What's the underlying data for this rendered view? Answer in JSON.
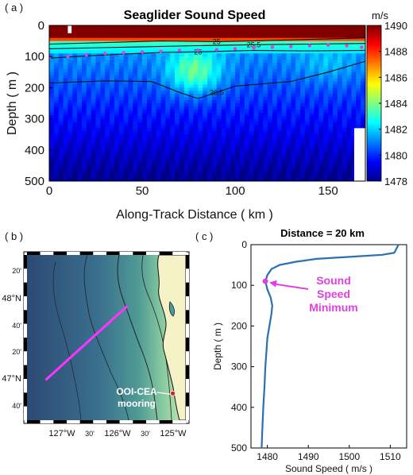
{
  "chart_data": [
    {
      "type": "heatmap",
      "panel_label": "( a )",
      "title": "Seaglider Sound Speed",
      "xlabel": "Along-Track Distance ( km )",
      "ylabel": "Depth ( m )",
      "xlim": [
        0,
        170
      ],
      "ylim": [
        500,
        0
      ],
      "xticks": [
        0,
        50,
        100,
        150
      ],
      "yticks": [
        0,
        100,
        200,
        300,
        400,
        500
      ],
      "colorbar": {
        "label": "m/s",
        "range": [
          1478,
          1490
        ],
        "ticks": [
          1478,
          1480,
          1482,
          1484,
          1486,
          1488,
          1490
        ]
      },
      "contours": [
        {
          "label": "25",
          "points": [
            [
              0,
              60
            ],
            [
              30,
              55
            ],
            [
              60,
              50
            ],
            [
              90,
              52
            ],
            [
              110,
              50
            ],
            [
              140,
              45
            ],
            [
              170,
              40
            ]
          ]
        },
        {
          "label": "25.5",
          "points": [
            [
              0,
              75
            ],
            [
              40,
              70
            ],
            [
              80,
              65
            ],
            [
              110,
              62
            ],
            [
              140,
              60
            ],
            [
              170,
              58
            ]
          ]
        },
        {
          "label": "26",
          "points": [
            [
              0,
              105
            ],
            [
              20,
              98
            ],
            [
              40,
              92
            ],
            [
              60,
              87
            ],
            [
              80,
              85
            ],
            [
              110,
              80
            ],
            [
              140,
              82
            ],
            [
              170,
              80
            ]
          ]
        },
        {
          "label": "26.5",
          "points": [
            [
              0,
              185
            ],
            [
              30,
              178
            ],
            [
              55,
              180
            ],
            [
              70,
              215
            ],
            [
              80,
              235
            ],
            [
              90,
              215
            ],
            [
              100,
              195
            ],
            [
              130,
              180
            ],
            [
              150,
              150
            ],
            [
              170,
              115
            ]
          ]
        }
      ],
      "sound_speed_minimum_depth": [
        [
          0,
          105
        ],
        [
          10,
          100
        ],
        [
          20,
          95
        ],
        [
          30,
          90
        ],
        [
          40,
          88
        ],
        [
          50,
          85
        ],
        [
          60,
          83
        ],
        [
          70,
          80
        ],
        [
          80,
          80
        ],
        [
          90,
          78
        ],
        [
          100,
          75
        ],
        [
          110,
          72
        ],
        [
          120,
          70
        ],
        [
          130,
          68
        ],
        [
          140,
          65
        ],
        [
          150,
          63
        ],
        [
          160,
          65
        ],
        [
          168,
          70
        ]
      ]
    },
    {
      "type": "map",
      "panel_label": "( b )",
      "lat_ticks": [
        "20'",
        "48°N",
        "40'",
        "20'",
        "47°N",
        "40'"
      ],
      "lon_ticks": [
        "127°W",
        "30'",
        "126°W",
        "30'",
        "125°W"
      ],
      "annotation": "OOI-CEA mooring",
      "annotation_lines": [
        "OOI-CEA",
        "mooring"
      ],
      "track_start": [
        -127.0,
        47.0
      ],
      "track_end": [
        -125.25,
        47.83
      ],
      "mooring": [
        -124.28,
        46.85
      ]
    },
    {
      "type": "line",
      "panel_label": "( c )",
      "title": "Distance = 20 km",
      "xlabel": "Sound Speed ( m/s )",
      "ylabel": "Depth ( m )",
      "xlim": [
        1476,
        1514
      ],
      "ylim": [
        500,
        0
      ],
      "xticks": [
        1480,
        1490,
        1500,
        1510
      ],
      "yticks": [
        0,
        100,
        200,
        300,
        400,
        500
      ],
      "annotation": "Sound Speed Minimum",
      "annotation_lines": [
        "Sound",
        "Speed",
        "Minimum"
      ],
      "minimum_point": [
        1479.5,
        90
      ],
      "profile": [
        [
          1512,
          0
        ],
        [
          1511.5,
          10
        ],
        [
          1511,
          20
        ],
        [
          1508,
          25
        ],
        [
          1500,
          30
        ],
        [
          1492,
          35
        ],
        [
          1487,
          42
        ],
        [
          1483,
          50
        ],
        [
          1481,
          60
        ],
        [
          1480,
          75
        ],
        [
          1479.5,
          90
        ],
        [
          1480,
          110
        ],
        [
          1480.8,
          130
        ],
        [
          1481.2,
          150
        ],
        [
          1481,
          170
        ],
        [
          1480.5,
          200
        ],
        [
          1480,
          230
        ],
        [
          1479.8,
          260
        ],
        [
          1479.5,
          300
        ],
        [
          1479.3,
          350
        ],
        [
          1479,
          400
        ],
        [
          1478.8,
          450
        ],
        [
          1478.6,
          500
        ]
      ]
    }
  ],
  "colors": {
    "contour": "#111111",
    "minimum": "#e040e0",
    "profile": "#2a6fb0",
    "track": "#ff33ff",
    "mooring": "#d62020"
  }
}
